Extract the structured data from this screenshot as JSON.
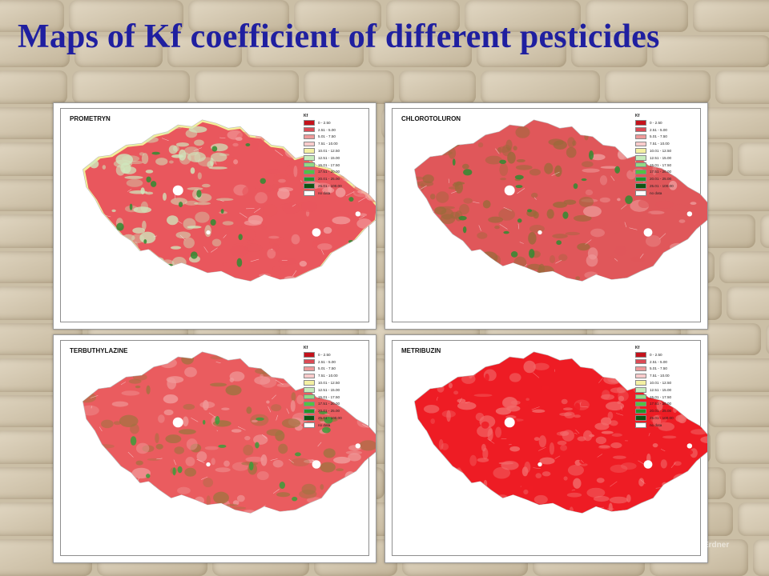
{
  "slide": {
    "title": "Maps of Kf coefficient of different pesticides"
  },
  "legend": {
    "title": "Kf",
    "items": [
      {
        "label": "0 - 2.50",
        "color": "#c4121b"
      },
      {
        "label": "2.51 - 5.00",
        "color": "#dc4a54"
      },
      {
        "label": "5.01 - 7.50",
        "color": "#ee9a9a"
      },
      {
        "label": "7.51 - 10.00",
        "color": "#f9cccc"
      },
      {
        "label": "10.01 - 12.50",
        "color": "#f4f0a2"
      },
      {
        "label": "12.51 - 15.00",
        "color": "#c6ecbc"
      },
      {
        "label": "15.01 - 17.50",
        "color": "#90db85"
      },
      {
        "label": "17.51 - 20.00",
        "color": "#52c243"
      },
      {
        "label": "20.01 - 25.00",
        "color": "#22952b"
      },
      {
        "label": "25.01 - 100.00",
        "color": "#0e5512"
      },
      {
        "label": "no data",
        "color": "#ffffff"
      }
    ]
  },
  "maps": [
    {
      "name": "PROMETRYN",
      "fill": "#e9575d",
      "mottle": "#cfe7bd",
      "accent": "#2f8c31",
      "coast": "#f3ee9a"
    },
    {
      "name": "CHLOROTOLURON",
      "fill": "#e0575a",
      "mottle": "#9b6a3a",
      "accent": "#2f8c31",
      "coast": "#e0575a"
    },
    {
      "name": "TERBUTHYLAZINE",
      "fill": "#ea5c5f",
      "mottle": "#a0733f",
      "accent": "#3b9c3a",
      "coast": "#ea5c5f"
    },
    {
      "name": "METRIBUZIN",
      "fill": "#ee1c24",
      "mottle": "#f26a6a",
      "accent": "#ee1c24",
      "coast": "#ee1c24"
    }
  ],
  "watermark": "Erdner"
}
